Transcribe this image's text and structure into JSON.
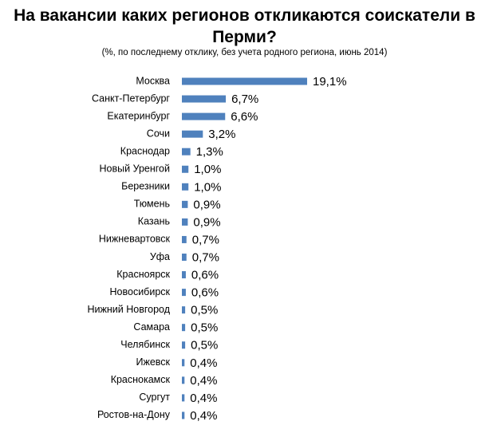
{
  "chart_data": {
    "type": "bar",
    "orientation": "horizontal",
    "title": "На вакансии каких регионов откликаются соискатели в Перми?",
    "subtitle": "(%, по последнему отклику, без учета родного региона,  июнь 2014)",
    "categories": [
      "Москва",
      "Санкт-Петербург",
      "Екатеринбург",
      "Сочи",
      "Краснодар",
      "Новый Уренгой",
      "Березники",
      "Тюмень",
      "Казань",
      "Нижневартовск",
      "Уфа",
      "Красноярск",
      "Новосибирск",
      "Нижний Новгород",
      "Самара",
      "Челябинск",
      "Ижевск",
      "Краснокамск",
      "Сургут",
      "Ростов-на-Дону"
    ],
    "values": [
      19.1,
      6.7,
      6.6,
      3.2,
      1.3,
      1.0,
      1.0,
      0.9,
      0.9,
      0.7,
      0.7,
      0.6,
      0.6,
      0.5,
      0.5,
      0.5,
      0.4,
      0.4,
      0.4,
      0.4
    ],
    "value_labels": [
      "19,1%",
      "6,7%",
      "6,6%",
      "3,2%",
      "1,3%",
      "1,0%",
      "1,0%",
      "0,9%",
      "0,9%",
      "0,7%",
      "0,7%",
      "0,6%",
      "0,6%",
      "0,5%",
      "0,5%",
      "0,5%",
      "0,4%",
      "0,4%",
      "0,4%",
      "0,4%"
    ],
    "color": "#4f81bd"
  }
}
